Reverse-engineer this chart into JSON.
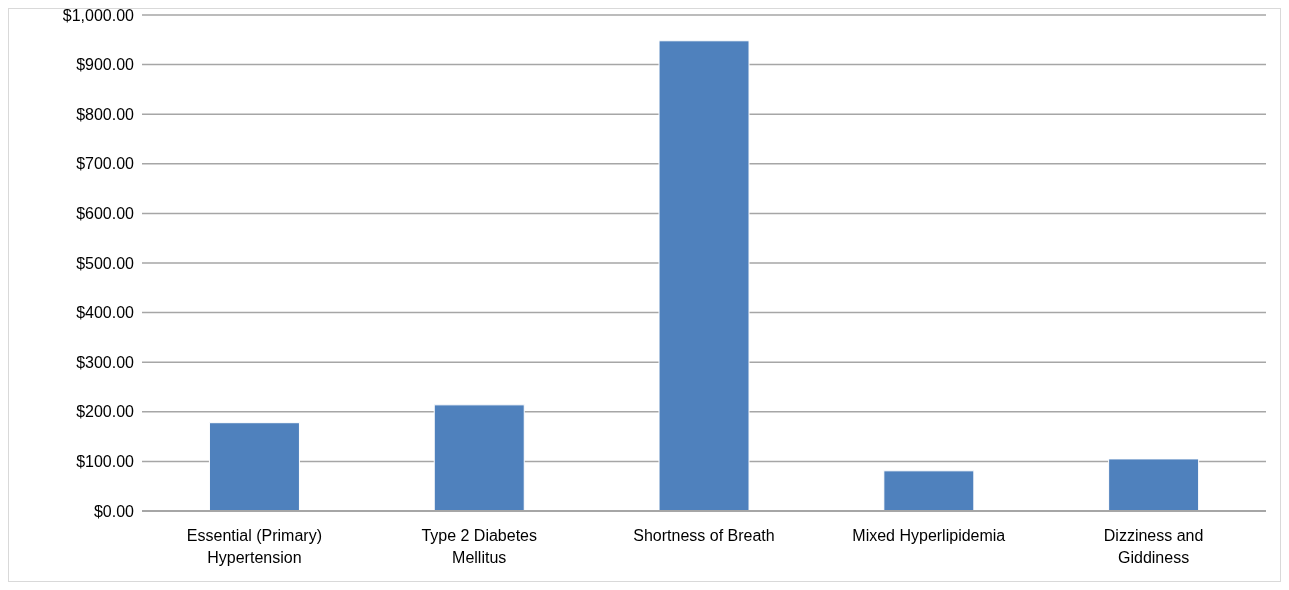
{
  "chart_data": {
    "type": "bar",
    "categories": [
      "Essential (Primary) Hypertension",
      "Type 2 Diabetes Mellitus",
      "Shortness of Breath",
      "Mixed Hyperlipidemia",
      "Dizziness and Giddiness"
    ],
    "values": [
      178,
      214,
      948,
      81,
      105
    ],
    "color": "#4f81bd",
    "ylim": [
      0,
      1000
    ],
    "yticks": [
      {
        "value": 0,
        "label": "$0.00"
      },
      {
        "value": 100,
        "label": "$100.00"
      },
      {
        "value": 200,
        "label": "$200.00"
      },
      {
        "value": 300,
        "label": "$300.00"
      },
      {
        "value": 400,
        "label": "$400.00"
      },
      {
        "value": 500,
        "label": "$500.00"
      },
      {
        "value": 600,
        "label": "$600.00"
      },
      {
        "value": 700,
        "label": "$700.00"
      },
      {
        "value": 800,
        "label": "$800.00"
      },
      {
        "value": 900,
        "label": "$900.00"
      },
      {
        "value": 1000,
        "label": "$1,000.00"
      }
    ],
    "grid": "y",
    "legend": false
  }
}
